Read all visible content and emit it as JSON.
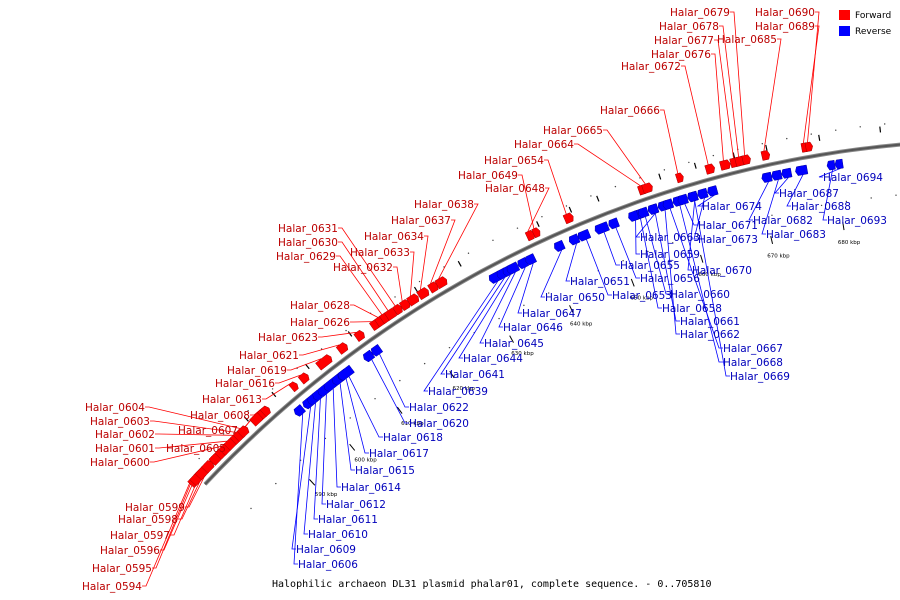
{
  "caption": "Halophilic archaeon DL31 plasmid phalar01, complete sequence. - 0..705810",
  "legend": {
    "forward_label": "Forward",
    "reverse_label": "Reverse",
    "forward_color": "#ff0000",
    "reverse_color": "#0000ff"
  },
  "ticks": [
    "590 kbp",
    "600 kbp",
    "610 kbp",
    "620 kbp",
    "630 kbp",
    "640 kbp",
    "650 kbp",
    "660 kbp",
    "670 kbp",
    "680 kbp"
  ],
  "forward_genes": [
    "Halar_0594",
    "Halar_0595",
    "Halar_0596",
    "Halar_0597",
    "Halar_0598",
    "Halar_0599",
    "Halar_0600",
    "Halar_0601",
    "Halar_0602",
    "Halar_0603",
    "Halar_0604",
    "Halar_0605",
    "Halar_0607",
    "Halar_0608",
    "Halar_0613",
    "Halar_0616",
    "Halar_0619",
    "Halar_0621",
    "Halar_0623",
    "Halar_0626",
    "Halar_0628",
    "Halar_0629",
    "Halar_0630",
    "Halar_0631",
    "Halar_0632",
    "Halar_0633",
    "Halar_0634",
    "Halar_0637",
    "Halar_0638",
    "Halar_0648",
    "Halar_0649",
    "Halar_0654",
    "Halar_0664",
    "Halar_0665",
    "Halar_0666",
    "Halar_0672",
    "Halar_0676",
    "Halar_0677",
    "Halar_0678",
    "Halar_0679",
    "Halar_0685",
    "Halar_0689",
    "Halar_0690"
  ],
  "reverse_genes": [
    "Halar_0606",
    "Halar_0609",
    "Halar_0610",
    "Halar_0611",
    "Halar_0612",
    "Halar_0614",
    "Halar_0615",
    "Halar_0617",
    "Halar_0618",
    "Halar_0620",
    "Halar_0622",
    "Halar_0639",
    "Halar_0641",
    "Halar_0644",
    "Halar_0645",
    "Halar_0646",
    "Halar_0647",
    "Halar_0650",
    "Halar_0651",
    "Halar_0653",
    "Halar_0655",
    "Halar_0656",
    "Halar_0658",
    "Halar_0659",
    "Halar_0660",
    "Halar_0661",
    "Halar_0662",
    "Halar_0663",
    "Halar_0667",
    "Halar_0668",
    "Halar_0669",
    "Halar_0670",
    "Halar_0671",
    "Halar_0673",
    "Halar_0674",
    "Halar_0682",
    "Halar_0683",
    "Halar_0687",
    "Halar_0688",
    "Halar_0693",
    "Halar_0694"
  ]
}
